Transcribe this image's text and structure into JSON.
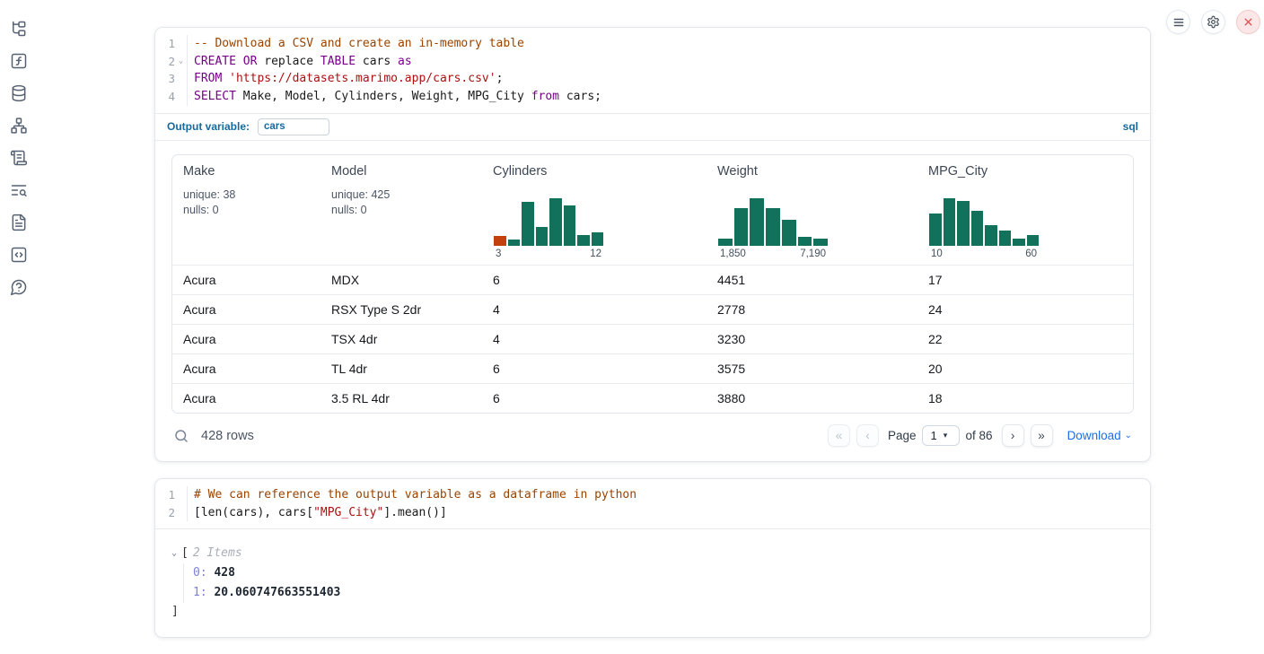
{
  "colors": {
    "accent_blue": "#156a9e",
    "download_blue": "#1a6fe8",
    "hist_green": "#12715a",
    "hist_orange": "#c2410c",
    "close_red": "#e05252",
    "code_keyword": "#770088",
    "code_string": "#aa1111",
    "code_comment": "#994400"
  },
  "sidebar": {
    "icons": [
      "file-tree",
      "function-square",
      "database",
      "network",
      "scroll-text",
      "list-search",
      "file-text",
      "code-snippets",
      "help-chat"
    ]
  },
  "topbar": {
    "buttons": [
      "menu",
      "settings",
      "shutdown"
    ]
  },
  "icons": {
    "fold_chevron": "⌄",
    "tree_chevron": "⌄",
    "select_chevron": "▾",
    "download_chevron": "⌄",
    "first_page": "«",
    "prev_page": "‹",
    "next_page": "›",
    "last_page": "»"
  },
  "sql_cell": {
    "language_badge": "sql",
    "output_variable_label": "Output variable:",
    "output_variable_value": "cars",
    "lines": [
      {
        "num": "1",
        "c1": "-- Download a CSV and create an in-memory table"
      },
      {
        "num": "2",
        "k1": "CREATE OR",
        "p1": " replace ",
        "k2": "TABLE",
        "p2": " cars ",
        "k3": "as"
      },
      {
        "num": "3",
        "k1": "FROM",
        "s1": " 'https://datasets.marimo.app/cars.csv'",
        "p1": ";"
      },
      {
        "num": "4",
        "k1": "SELECT",
        "p1": " Make, Model, Cylinders, Weight, MPG_City ",
        "k2": "from",
        "p2": " cars;"
      }
    ]
  },
  "table": {
    "columns": [
      {
        "name": "Make",
        "stat1": "unique: 38",
        "stat2": "nulls: 0"
      },
      {
        "name": "Model",
        "stat1": "unique: 425",
        "stat2": "nulls: 0"
      },
      {
        "name": "Cylinders",
        "min": "3",
        "max": "12"
      },
      {
        "name": "Weight",
        "min": "1,850",
        "max": "7,190"
      },
      {
        "name": "MPG_City",
        "min": "10",
        "max": "60"
      }
    ],
    "rows": [
      [
        "Acura",
        "MDX",
        "6",
        "4451",
        "17"
      ],
      [
        "Acura",
        "RSX Type S 2dr",
        "4",
        "2778",
        "24"
      ],
      [
        "Acura",
        "TSX 4dr",
        "4",
        "3230",
        "22"
      ],
      [
        "Acura",
        "TL 4dr",
        "6",
        "3575",
        "20"
      ],
      [
        "Acura",
        "3.5 RL 4dr",
        "6",
        "3880",
        "18"
      ]
    ],
    "footer": {
      "row_count": "428 rows",
      "page_label": "Page",
      "page_value": "1",
      "of_label": "of 86",
      "download_label": "Download"
    }
  },
  "python_cell": {
    "lines": [
      {
        "num": "1",
        "c1": "# We can reference the output variable as a dataframe in python"
      },
      {
        "num": "2",
        "p1": "[len(cars), cars[",
        "s1": "\"MPG_City\"",
        "p2": "].mean()]"
      }
    ],
    "output": {
      "open_bracket": "[",
      "items_label": "2 Items",
      "entries": [
        {
          "key": "0:",
          "value": "428"
        },
        {
          "key": "1:",
          "value": "20.060747663551403"
        }
      ],
      "close_bracket": "]"
    }
  },
  "chart_data": [
    {
      "type": "bar",
      "subtype": "histogram",
      "column": "Cylinders",
      "x_range_labels": [
        "3",
        "12"
      ],
      "rel_heights": [
        0.21,
        0.13,
        0.92,
        0.4,
        1.0,
        0.85,
        0.23,
        0.29
      ],
      "bar_color": "#12715a",
      "highlight_index": 0,
      "highlight_color": "#c2410c"
    },
    {
      "type": "bar",
      "subtype": "histogram",
      "column": "Weight",
      "x_range_labels": [
        "1,850",
        "7,190"
      ],
      "rel_heights": [
        0.15,
        0.8,
        1.0,
        0.79,
        0.55,
        0.19,
        0.15
      ],
      "bar_color": "#12715a"
    },
    {
      "type": "bar",
      "subtype": "histogram",
      "column": "MPG_City",
      "x_range_labels": [
        "10",
        "60"
      ],
      "rel_heights": [
        0.67,
        1.0,
        0.94,
        0.73,
        0.44,
        0.32,
        0.15,
        0.23
      ],
      "bar_color": "#12715a"
    }
  ]
}
